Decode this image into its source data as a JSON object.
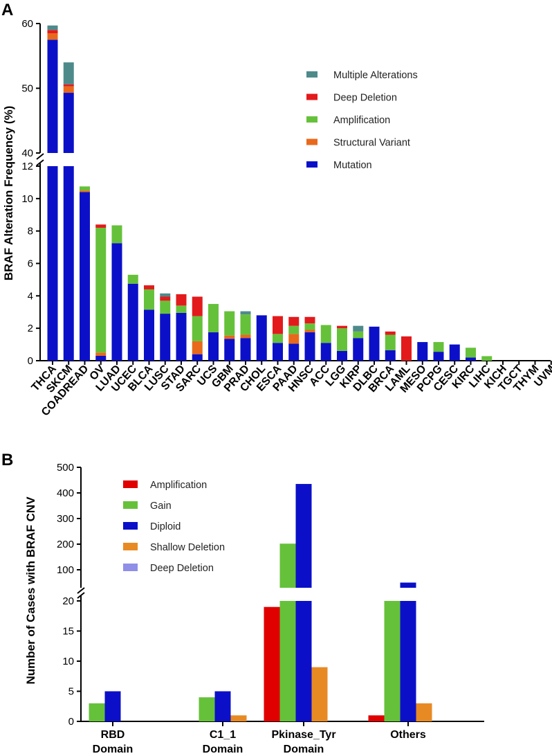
{
  "chart_data": [
    {
      "panel": "A",
      "type": "bar",
      "stacked": true,
      "ylabel": "BRAF Alteration Frequency (%)",
      "axis_break": {
        "lower": [
          0,
          12
        ],
        "upper": [
          40,
          60
        ]
      },
      "lower_ticks": [
        0,
        2,
        4,
        6,
        8,
        10,
        12
      ],
      "upper_ticks": [
        40,
        50,
        60
      ],
      "categories": [
        "THCA",
        "SKCM",
        "COADREAD",
        "OV",
        "LUAD",
        "UCEC",
        "BLCA",
        "LUSC",
        "STAD",
        "SARC",
        "UCS",
        "GBM",
        "PRAD",
        "CHOL",
        "ESCA",
        "PAAD",
        "HNSC",
        "ACC",
        "LGG",
        "KIRP",
        "DLBC",
        "BRCA",
        "LAML",
        "MESO",
        "PCPG",
        "CESC",
        "KIRC",
        "LIHC",
        "KICH",
        "TGCT",
        "THYM",
        "UVM"
      ],
      "series": [
        {
          "name": "Mutation",
          "color": "#0b10c8",
          "values": [
            57.5,
            49.3,
            10.4,
            0.3,
            7.25,
            4.75,
            3.15,
            2.9,
            2.95,
            0.4,
            1.75,
            1.35,
            1.4,
            2.8,
            1.1,
            1.05,
            1.75,
            1.1,
            0.6,
            1.4,
            2.1,
            0.65,
            0,
            1.15,
            0.55,
            1.0,
            0.2,
            0,
            0,
            0,
            0,
            0
          ]
        },
        {
          "name": "Structural Variant",
          "color": "#e8691c",
          "values": [
            1.0,
            1.0,
            0.1,
            0.2,
            0,
            0,
            0,
            0,
            0,
            0.8,
            0,
            0.2,
            0.2,
            0,
            0,
            0.6,
            0.15,
            0,
            0,
            0,
            0,
            0,
            0,
            0,
            0,
            0,
            0,
            0,
            0,
            0,
            0,
            0
          ]
        },
        {
          "name": "Amplification",
          "color": "#66c13a",
          "values": [
            0,
            0,
            0.25,
            7.7,
            1.1,
            0.55,
            1.25,
            0.8,
            0.45,
            1.55,
            1.75,
            1.5,
            1.25,
            0,
            0.55,
            0.5,
            0.4,
            1.1,
            1.4,
            0.4,
            0,
            0.95,
            0,
            0,
            0.6,
            0,
            0.6,
            0.28,
            0,
            0,
            0,
            0
          ]
        },
        {
          "name": "Deep Deletion",
          "color": "#e31a1c",
          "values": [
            0.5,
            0.3,
            0,
            0.2,
            0,
            0,
            0.25,
            0.25,
            0.7,
            1.2,
            0,
            0,
            0,
            0,
            1.1,
            0.55,
            0.4,
            0,
            0.15,
            0,
            0,
            0.2,
            1.5,
            0,
            0,
            0,
            0,
            0,
            0,
            0,
            0,
            0
          ]
        },
        {
          "name": "Multiple Alterations",
          "color": "#4f8a8b",
          "values": [
            0.7,
            3.4,
            0,
            0,
            0,
            0,
            0,
            0.2,
            0,
            0,
            0,
            0,
            0.2,
            0,
            0,
            0,
            0,
            0,
            0,
            0.35,
            0,
            0,
            0,
            0,
            0,
            0,
            0,
            0,
            0,
            0,
            0,
            0
          ]
        }
      ],
      "legend": [
        "Multiple Alterations",
        "Deep Deletion",
        "Amplification",
        "Structural Variant",
        "Mutation"
      ],
      "legend_position": "top-right"
    },
    {
      "panel": "B",
      "type": "bar",
      "grouped": true,
      "ylabel": "Number of Cases with BRAF CNV",
      "axis_break": {
        "lower": [
          0,
          20
        ],
        "upper": [
          20,
          500
        ]
      },
      "lower_ticks": [
        0,
        5,
        10,
        15,
        20
      ],
      "upper_ticks": [
        100,
        200,
        300,
        400,
        500
      ],
      "categories": [
        [
          "RBD",
          "Domain"
        ],
        [
          "C1_1",
          "Domain"
        ],
        [
          "Pkinase_Tyr",
          "Domain"
        ],
        [
          "Others"
        ]
      ],
      "series": [
        {
          "name": "Amplification",
          "color": "#e00000",
          "values": [
            0,
            0,
            19,
            1
          ]
        },
        {
          "name": "Gain",
          "color": "#66c13a",
          "values": [
            3,
            4,
            202,
            20
          ]
        },
        {
          "name": "Diploid",
          "color": "#0b10c8",
          "values": [
            5,
            5,
            435,
            50
          ]
        },
        {
          "name": "Shallow Deletion",
          "color": "#e88a24",
          "values": [
            0,
            1,
            9,
            3
          ]
        },
        {
          "name": "Deep Deletion",
          "color": "#8f8fe8",
          "values": [
            0,
            0,
            0,
            0
          ]
        }
      ],
      "legend": [
        "Amplification",
        "Gain",
        "Diploid",
        "Shallow Deletion",
        "Deep Deletion"
      ],
      "legend_position": "top-left"
    }
  ],
  "panel_labels": [
    "A",
    "B"
  ]
}
